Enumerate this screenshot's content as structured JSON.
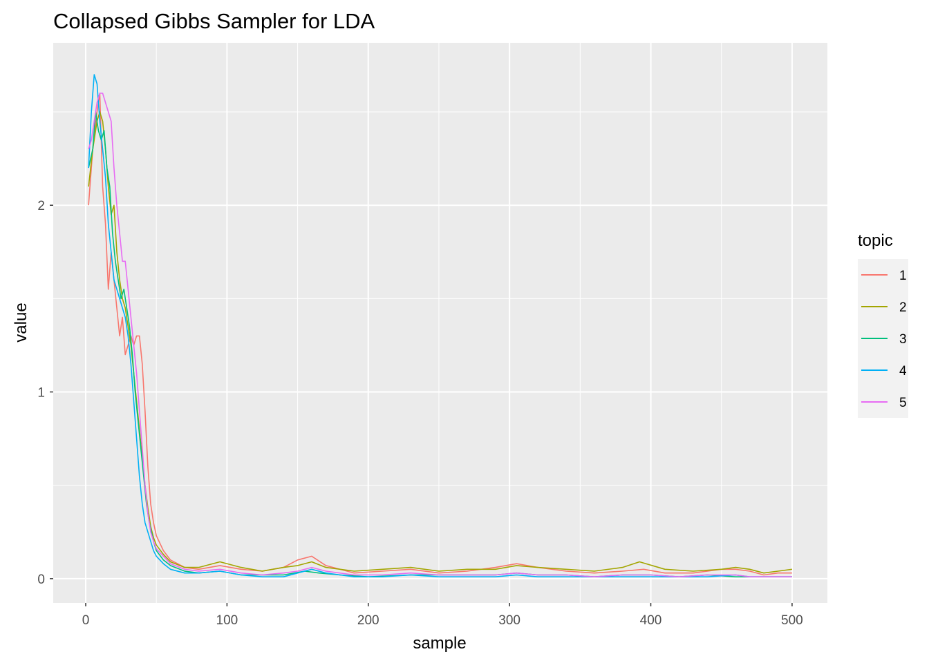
{
  "chart_data": {
    "type": "line",
    "title": "Collapsed Gibbs Sampler for LDA",
    "xlabel": "sample",
    "ylabel": "value",
    "xlim": [
      -23,
      525
    ],
    "ylim": [
      -0.13,
      2.87
    ],
    "x_ticks": [
      0,
      100,
      200,
      300,
      400,
      500
    ],
    "y_ticks": [
      0,
      1,
      2
    ],
    "grid": true,
    "legend": {
      "title": "topic",
      "position": "right"
    },
    "series": [
      {
        "name": "1",
        "color": "#F8766D",
        "x": [
          2,
          5,
          8,
          10,
          12,
          14,
          16,
          18,
          20,
          22,
          24,
          26,
          28,
          30,
          32,
          34,
          36,
          38,
          40,
          42,
          44,
          46,
          48,
          50,
          55,
          60,
          70,
          80,
          95,
          110,
          125,
          140,
          150,
          160,
          170,
          190,
          210,
          230,
          250,
          270,
          290,
          305,
          320,
          340,
          360,
          380,
          395,
          410,
          430,
          450,
          460,
          470,
          480,
          490,
          500
        ],
        "y": [
          2.0,
          2.3,
          2.5,
          2.6,
          2.1,
          1.9,
          1.55,
          1.75,
          1.6,
          1.45,
          1.3,
          1.4,
          1.2,
          1.25,
          1.3,
          1.25,
          1.3,
          1.3,
          1.15,
          0.9,
          0.6,
          0.4,
          0.3,
          0.23,
          0.15,
          0.1,
          0.06,
          0.05,
          0.07,
          0.05,
          0.04,
          0.06,
          0.1,
          0.12,
          0.07,
          0.03,
          0.04,
          0.05,
          0.03,
          0.04,
          0.06,
          0.08,
          0.06,
          0.04,
          0.03,
          0.04,
          0.05,
          0.03,
          0.03,
          0.05,
          0.05,
          0.04,
          0.02,
          0.03,
          0.03
        ]
      },
      {
        "name": "2",
        "color": "#A3A500",
        "x": [
          2,
          5,
          8,
          10,
          12,
          14,
          16,
          18,
          20,
          22,
          24,
          26,
          28,
          30,
          32,
          34,
          36,
          38,
          40,
          42,
          44,
          46,
          48,
          50,
          55,
          60,
          70,
          80,
          95,
          110,
          125,
          140,
          150,
          160,
          170,
          190,
          210,
          230,
          250,
          270,
          290,
          305,
          320,
          340,
          360,
          380,
          392,
          410,
          430,
          450,
          460,
          470,
          480,
          490,
          500
        ],
        "y": [
          2.1,
          2.3,
          2.45,
          2.5,
          2.45,
          2.3,
          2.1,
          1.95,
          2.0,
          1.75,
          1.6,
          1.5,
          1.45,
          1.35,
          1.25,
          1.1,
          0.95,
          0.8,
          0.65,
          0.5,
          0.38,
          0.28,
          0.22,
          0.18,
          0.13,
          0.09,
          0.06,
          0.06,
          0.09,
          0.06,
          0.04,
          0.06,
          0.07,
          0.09,
          0.06,
          0.04,
          0.05,
          0.06,
          0.04,
          0.05,
          0.05,
          0.07,
          0.06,
          0.05,
          0.04,
          0.06,
          0.09,
          0.05,
          0.04,
          0.05,
          0.06,
          0.05,
          0.03,
          0.04,
          0.05
        ]
      },
      {
        "name": "3",
        "color": "#00BF7D",
        "x": [
          2,
          5,
          7,
          9,
          11,
          13,
          15,
          17,
          19,
          21,
          23,
          25,
          27,
          29,
          31,
          33,
          35,
          37,
          39,
          41,
          43,
          45,
          48,
          50,
          55,
          60,
          70,
          80,
          95,
          110,
          125,
          140,
          155,
          165,
          180,
          200,
          230,
          260,
          290,
          305,
          320,
          340,
          360,
          380,
          400,
          420,
          440,
          460,
          480,
          500
        ],
        "y": [
          2.2,
          2.3,
          2.5,
          2.4,
          2.35,
          2.4,
          2.2,
          2.1,
          1.85,
          1.7,
          1.6,
          1.5,
          1.55,
          1.45,
          1.35,
          1.2,
          1.0,
          0.85,
          0.7,
          0.55,
          0.4,
          0.3,
          0.2,
          0.15,
          0.1,
          0.07,
          0.04,
          0.03,
          0.04,
          0.02,
          0.02,
          0.02,
          0.04,
          0.03,
          0.02,
          0.01,
          0.02,
          0.02,
          0.02,
          0.03,
          0.02,
          0.02,
          0.01,
          0.02,
          0.02,
          0.01,
          0.02,
          0.01,
          0.01,
          0.01
        ]
      },
      {
        "name": "4",
        "color": "#00B0F6",
        "x": [
          2,
          4,
          6,
          8,
          10,
          12,
          14,
          16,
          18,
          20,
          22,
          24,
          26,
          28,
          30,
          32,
          34,
          36,
          38,
          40,
          42,
          44,
          46,
          48,
          50,
          55,
          60,
          70,
          80,
          95,
          110,
          125,
          140,
          150,
          160,
          170,
          190,
          210,
          230,
          250,
          270,
          290,
          305,
          320,
          340,
          360,
          380,
          400,
          420,
          440,
          460,
          470,
          480,
          490,
          500
        ],
        "y": [
          2.2,
          2.5,
          2.7,
          2.65,
          2.45,
          2.3,
          2.15,
          1.9,
          1.75,
          1.6,
          1.55,
          1.5,
          1.45,
          1.4,
          1.3,
          1.15,
          0.95,
          0.75,
          0.55,
          0.4,
          0.3,
          0.25,
          0.2,
          0.15,
          0.12,
          0.08,
          0.05,
          0.03,
          0.03,
          0.04,
          0.02,
          0.01,
          0.01,
          0.03,
          0.05,
          0.03,
          0.01,
          0.01,
          0.02,
          0.01,
          0.01,
          0.01,
          0.02,
          0.01,
          0.01,
          0.01,
          0.01,
          0.01,
          0.01,
          0.01,
          0.02,
          0.01,
          0.01,
          0.01,
          0.01
        ]
      },
      {
        "name": "5",
        "color": "#E76BF3",
        "x": [
          2,
          4,
          6,
          8,
          10,
          12,
          14,
          16,
          18,
          20,
          22,
          24,
          26,
          28,
          30,
          32,
          34,
          36,
          38,
          40,
          42,
          44,
          46,
          48,
          50,
          55,
          60,
          70,
          80,
          95,
          110,
          125,
          140,
          150,
          160,
          170,
          190,
          210,
          230,
          250,
          270,
          290,
          305,
          320,
          340,
          360,
          380,
          400,
          420,
          440,
          460,
          470,
          480,
          490,
          500
        ],
        "y": [
          2.3,
          2.35,
          2.45,
          2.55,
          2.6,
          2.6,
          2.55,
          2.5,
          2.45,
          2.2,
          2.0,
          1.85,
          1.7,
          1.7,
          1.55,
          1.4,
          1.25,
          1.1,
          0.9,
          0.7,
          0.5,
          0.35,
          0.25,
          0.2,
          0.16,
          0.12,
          0.08,
          0.05,
          0.04,
          0.05,
          0.03,
          0.02,
          0.03,
          0.04,
          0.06,
          0.04,
          0.02,
          0.02,
          0.03,
          0.02,
          0.02,
          0.02,
          0.03,
          0.02,
          0.02,
          0.01,
          0.02,
          0.02,
          0.01,
          0.02,
          0.02,
          0.01,
          0.01,
          0.01,
          0.01
        ]
      }
    ]
  }
}
